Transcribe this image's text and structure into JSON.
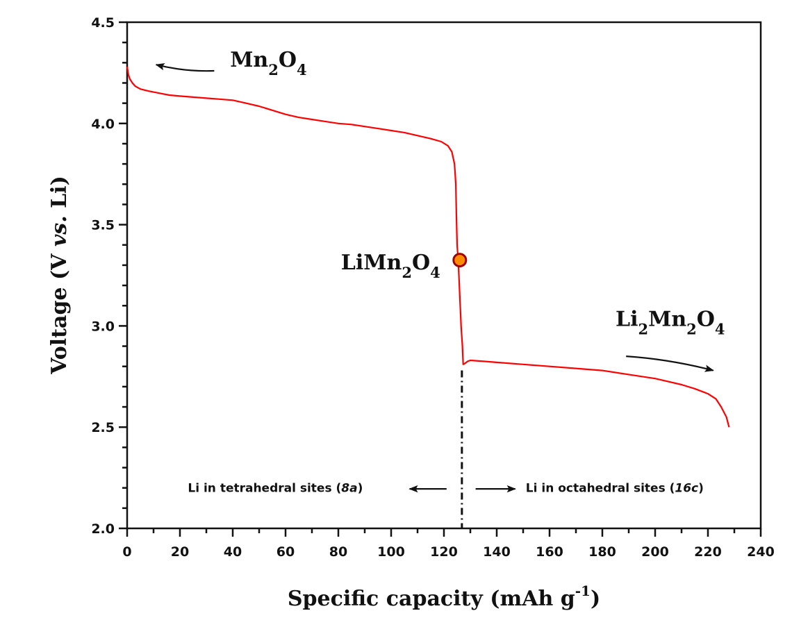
{
  "chart_data": {
    "type": "line",
    "title": "",
    "xlabel": "Specific capacity (mAh g",
    "xlabel_sup": "-1",
    "xlabel_close": ")",
    "ylabel_parts": [
      "Voltage (V ",
      "vs.",
      " Li)"
    ],
    "xlim": [
      0,
      240
    ],
    "ylim": [
      2.0,
      4.5
    ],
    "x_ticks": [
      0,
      20,
      40,
      60,
      80,
      100,
      120,
      140,
      160,
      180,
      200,
      220,
      240
    ],
    "x_tick_labels": [
      "0",
      "20",
      "40",
      "60",
      "80",
      "100",
      "120",
      "140",
      "160",
      "180",
      "200",
      "220",
      "240"
    ],
    "x_minor_step": 10,
    "y_ticks": [
      2.0,
      2.5,
      3.0,
      3.5,
      4.0,
      4.5
    ],
    "y_tick_labels": [
      "2.0",
      "2.5",
      "3.0",
      "3.5",
      "4.0",
      "4.5"
    ],
    "y_minor_step": 0.1,
    "grid": false,
    "legend": "none",
    "series": [
      {
        "name": "discharge curve",
        "color": "#ff0000",
        "points": [
          [
            0,
            4.28
          ],
          [
            0.5,
            4.24
          ],
          [
            1,
            4.22
          ],
          [
            2,
            4.2
          ],
          [
            3,
            4.185
          ],
          [
            5,
            4.17
          ],
          [
            8,
            4.16
          ],
          [
            12,
            4.15
          ],
          [
            16,
            4.14
          ],
          [
            20,
            4.135
          ],
          [
            25,
            4.13
          ],
          [
            30,
            4.125
          ],
          [
            35,
            4.12
          ],
          [
            40,
            4.115
          ],
          [
            45,
            4.1
          ],
          [
            50,
            4.085
          ],
          [
            55,
            4.065
          ],
          [
            60,
            4.045
          ],
          [
            65,
            4.03
          ],
          [
            70,
            4.02
          ],
          [
            75,
            4.01
          ],
          [
            80,
            4.0
          ],
          [
            85,
            3.995
          ],
          [
            90,
            3.985
          ],
          [
            95,
            3.975
          ],
          [
            100,
            3.965
          ],
          [
            105,
            3.955
          ],
          [
            110,
            3.94
          ],
          [
            115,
            3.925
          ],
          [
            119,
            3.91
          ],
          [
            121.5,
            3.89
          ],
          [
            123,
            3.86
          ],
          [
            124,
            3.8
          ],
          [
            124.5,
            3.7
          ],
          [
            124.7,
            3.55
          ],
          [
            125,
            3.4
          ],
          [
            125.5,
            3.3
          ],
          [
            126,
            3.15
          ],
          [
            126.5,
            3.0
          ],
          [
            127,
            2.9
          ],
          [
            127.3,
            2.81
          ],
          [
            128,
            2.815
          ],
          [
            129,
            2.825
          ],
          [
            130,
            2.83
          ],
          [
            135,
            2.825
          ],
          [
            140,
            2.82
          ],
          [
            150,
            2.81
          ],
          [
            160,
            2.8
          ],
          [
            170,
            2.79
          ],
          [
            180,
            2.78
          ],
          [
            190,
            2.76
          ],
          [
            200,
            2.74
          ],
          [
            205,
            2.725
          ],
          [
            210,
            2.71
          ],
          [
            215,
            2.69
          ],
          [
            220,
            2.665
          ],
          [
            223,
            2.64
          ],
          [
            225,
            2.6
          ],
          [
            227,
            2.55
          ],
          [
            228,
            2.5
          ]
        ]
      }
    ],
    "marker": {
      "label": "LiMn2O4",
      "x": 126,
      "y": 3.325,
      "fill": "#ff8c00",
      "stroke": "#a00000"
    },
    "vertical_line": {
      "x": 126.8,
      "y_from": 2.0,
      "y_to": 2.78,
      "style": "dash-dot"
    },
    "annotations": [
      {
        "id": "mn2o4",
        "parts": [
          [
            "Mn",
            ""
          ],
          [
            "2",
            "sub"
          ],
          [
            "O",
            ""
          ],
          [
            "4",
            "sub"
          ]
        ],
        "x": 39,
        "y": 4.28
      },
      {
        "id": "limn2o4",
        "parts": [
          [
            "LiMn",
            ""
          ],
          [
            "2",
            "sub"
          ],
          [
            "O",
            ""
          ],
          [
            "4",
            "sub"
          ]
        ],
        "x": 81,
        "y": 3.28
      },
      {
        "id": "li2mn2o4",
        "parts": [
          [
            "Li",
            ""
          ],
          [
            "2",
            "sub"
          ],
          [
            "Mn",
            ""
          ],
          [
            "2",
            "sub"
          ],
          [
            "O",
            ""
          ],
          [
            "4",
            "sub"
          ]
        ],
        "x": 185,
        "y": 3.0
      },
      {
        "id": "tetrahedral",
        "text": "Li in tetrahedral sites (",
        "italic": "8a",
        "close": ")",
        "x": 23,
        "y": 2.18
      },
      {
        "id": "octahedral",
        "text": "Li in octahedral sites (",
        "italic": "16c",
        "close": ")",
        "x": 151,
        "y": 2.18
      }
    ],
    "arrows": [
      {
        "id": "arrow-mn2o4",
        "from": [
          33,
          4.26
        ],
        "to": [
          11,
          4.29
        ],
        "curved": true
      },
      {
        "id": "arrow-li2mn2o4",
        "from": [
          189,
          2.85
        ],
        "to": [
          222,
          2.78
        ],
        "curved": true
      },
      {
        "id": "arrow-tetrahedral",
        "from": [
          121,
          2.195
        ],
        "to": [
          107,
          2.195
        ],
        "curved": false
      },
      {
        "id": "arrow-octahedral",
        "from": [
          132,
          2.195
        ],
        "to": [
          147,
          2.195
        ],
        "curved": false
      }
    ]
  }
}
